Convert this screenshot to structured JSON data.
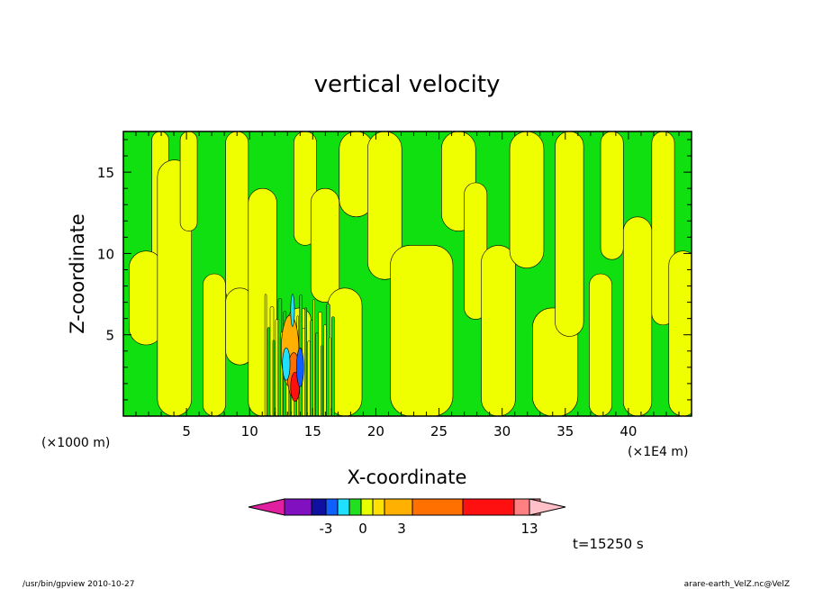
{
  "chart_data": {
    "type": "heatmap",
    "title": "vertical velocity",
    "xlabel": "X-coordinate",
    "ylabel": "Z-coordinate",
    "x_unit": "(×1E4 m)",
    "y_unit": "(×1000 m)",
    "x_ticks": [
      5,
      10,
      15,
      20,
      25,
      30,
      35,
      40
    ],
    "y_ticks": [
      5,
      10,
      15
    ],
    "xlim": [
      0,
      45
    ],
    "ylim": [
      0,
      17.5
    ],
    "colorbar": {
      "colors": [
        "#e020a0",
        "#8010c0",
        "#1010a0",
        "#1060ff",
        "#20e0ff",
        "#20e020",
        "#e8ff00",
        "#ffe000",
        "#ffb000",
        "#ff7000",
        "#ff1010",
        "#ff8080",
        "#ffc0c8"
      ],
      "labels": [
        "-3",
        "0",
        "3",
        "13"
      ]
    },
    "field_colors": {
      "positive": "#f0ff00",
      "negative": "#10e010"
    },
    "time_label": "t=15250 s"
  },
  "footer": {
    "left": "/usr/bin/gpview   2010-10-27",
    "right": "arare-earth_VelZ.nc@VelZ"
  }
}
